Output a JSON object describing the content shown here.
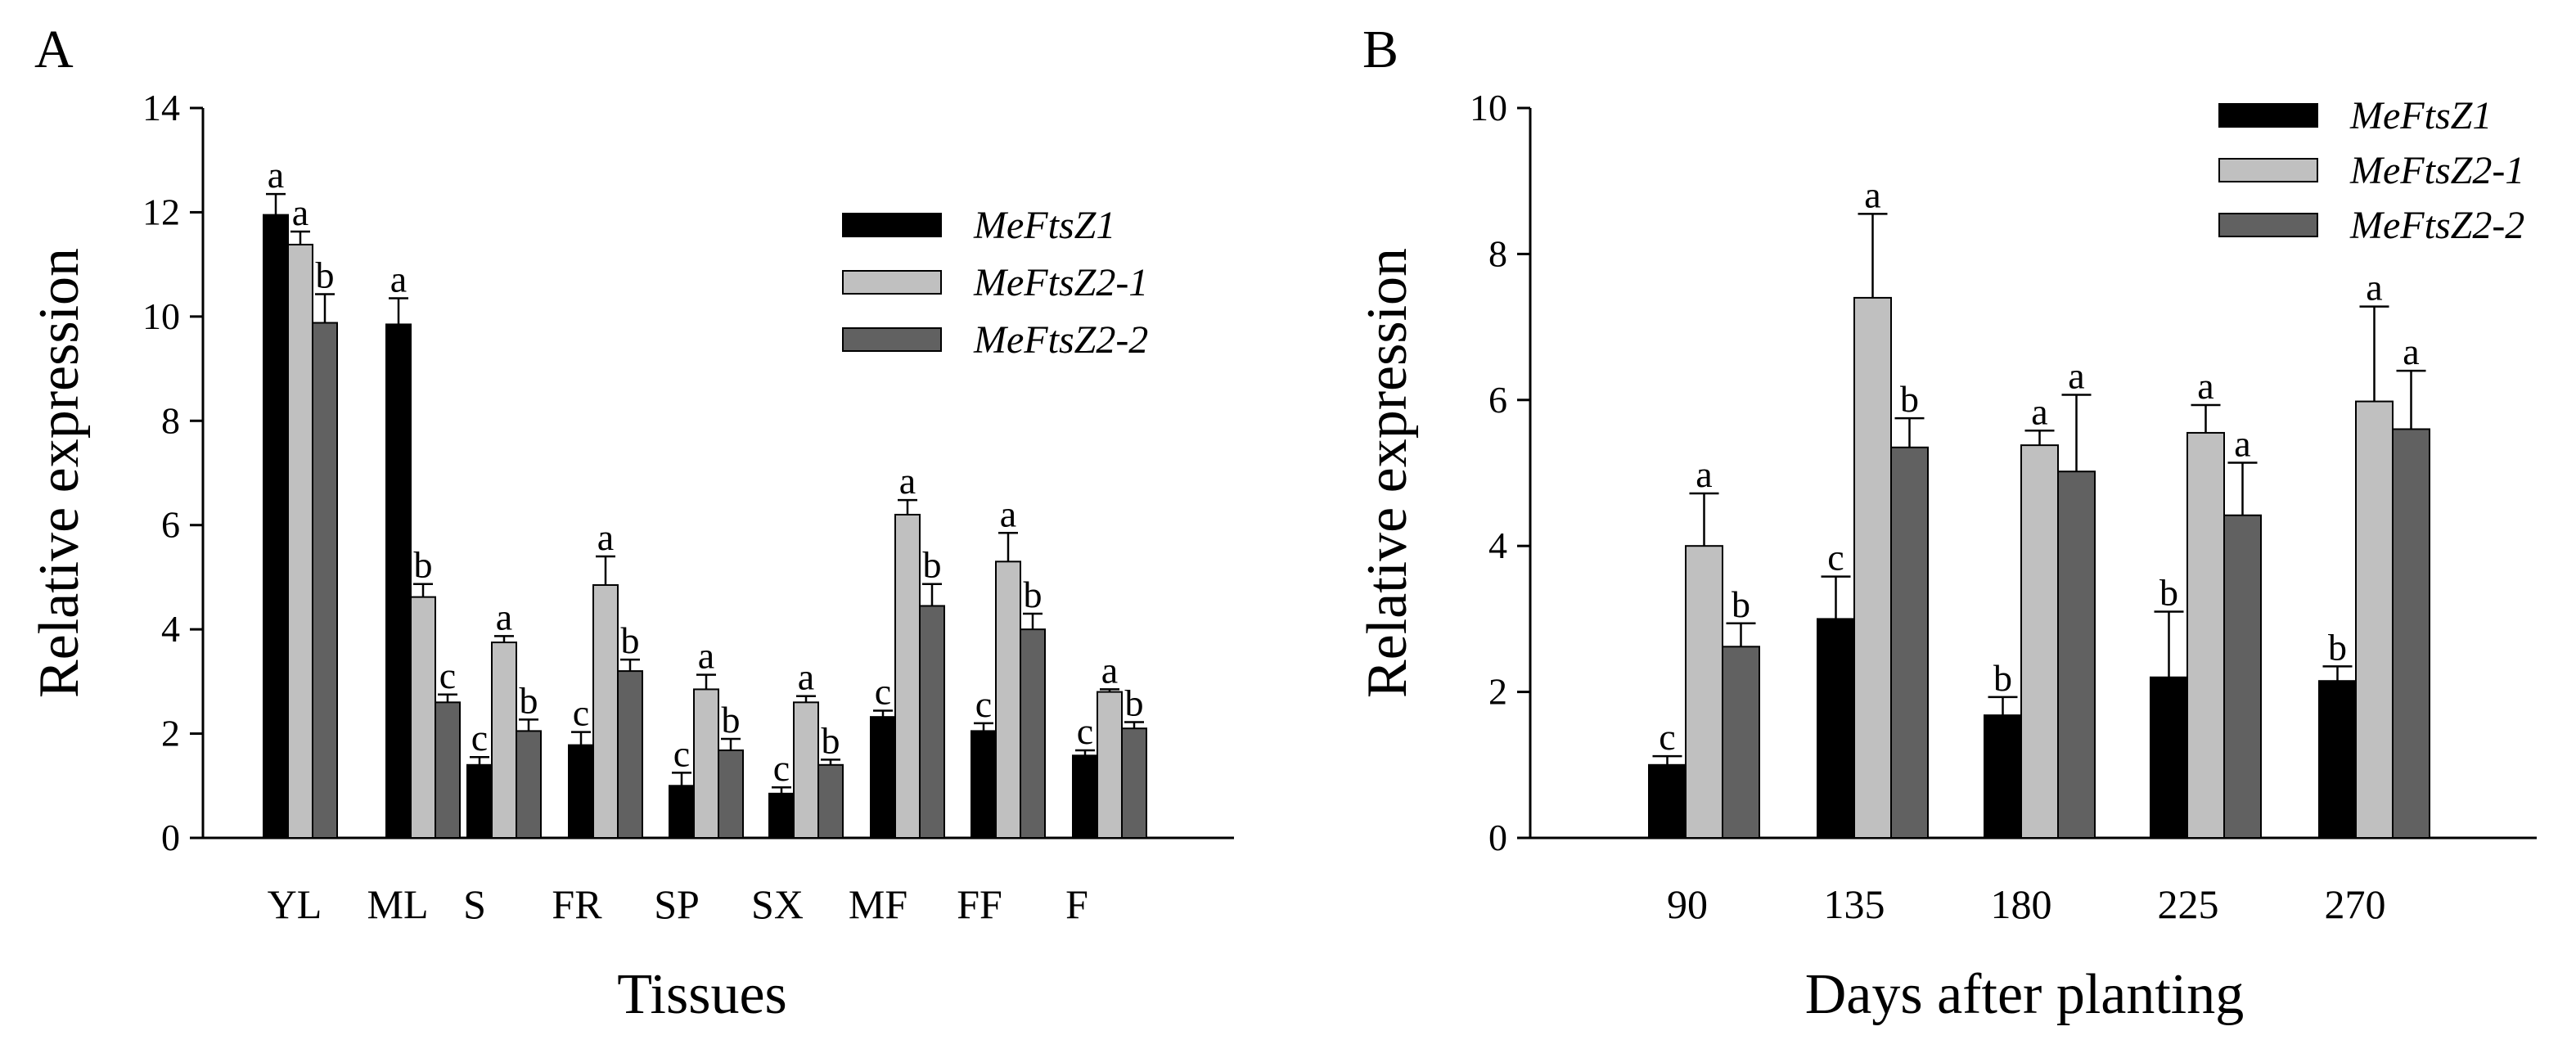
{
  "chart_data": [
    {
      "panel_label": "A",
      "type": "bar",
      "xlabel": "Tissues",
      "ylabel": "Relative expression",
      "ylim": [
        0,
        14
      ],
      "yticks": [
        "0",
        "2",
        "4",
        "6",
        "8",
        "10",
        "12",
        "14"
      ],
      "categories": [
        "YL",
        "ML",
        "S",
        "FR",
        "SP",
        "SX",
        "MF",
        "FF",
        "F"
      ],
      "legend_position": "top-right",
      "series": [
        {
          "name": "MeFtsZ1",
          "color": "#000000",
          "values": [
            11.95,
            9.85,
            1.4,
            1.78,
            1.0,
            0.85,
            2.32,
            2.05,
            1.58
          ],
          "errors": [
            0.4,
            0.5,
            0.15,
            0.25,
            0.25,
            0.12,
            0.12,
            0.15,
            0.1
          ],
          "letters": [
            "a",
            "a",
            "c",
            "c",
            "c",
            "c",
            "c",
            "c",
            "c"
          ]
        },
        {
          "name": "MeFtsZ2-1",
          "color": "#c0c0c0",
          "values": [
            11.38,
            4.62,
            3.75,
            4.85,
            2.85,
            2.6,
            6.2,
            5.3,
            2.8
          ],
          "errors": [
            0.25,
            0.25,
            0.12,
            0.55,
            0.28,
            0.12,
            0.28,
            0.55,
            0.05
          ],
          "letters": [
            "a",
            "b",
            "a",
            "a",
            "a",
            "a",
            "a",
            "a",
            "a"
          ]
        },
        {
          "name": "MeFtsZ2-2",
          "color": "#616161",
          "values": [
            9.88,
            2.6,
            2.05,
            3.2,
            1.68,
            1.4,
            4.45,
            4.0,
            2.1
          ],
          "errors": [
            0.55,
            0.15,
            0.22,
            0.22,
            0.22,
            0.1,
            0.42,
            0.3,
            0.12
          ],
          "letters": [
            "b",
            "c",
            "b",
            "b",
            "b",
            "b",
            "b",
            "b",
            "b"
          ]
        }
      ]
    },
    {
      "panel_label": "B",
      "type": "bar",
      "xlabel": "Days after planting",
      "ylabel": "Relative expression",
      "ylim": [
        0,
        10
      ],
      "yticks": [
        "0",
        "2",
        "4",
        "6",
        "8",
        "10"
      ],
      "categories": [
        "90",
        "135",
        "180",
        "225",
        "270"
      ],
      "legend_position": "top-right",
      "series": [
        {
          "name": "MeFtsZ1",
          "color": "#000000",
          "values": [
            1.0,
            3.0,
            1.68,
            2.2,
            2.15
          ],
          "errors": [
            0.12,
            0.58,
            0.25,
            0.9,
            0.2
          ],
          "letters": [
            "c",
            "c",
            "b",
            "b",
            "b"
          ]
        },
        {
          "name": "MeFtsZ2-1",
          "color": "#c0c0c0",
          "values": [
            4.0,
            7.4,
            5.38,
            5.55,
            5.98
          ],
          "errors": [
            0.72,
            1.15,
            0.2,
            0.38,
            1.3
          ],
          "letters": [
            "a",
            "a",
            "a",
            "a",
            "a"
          ]
        },
        {
          "name": "MeFtsZ2-2",
          "color": "#616161",
          "values": [
            2.62,
            5.35,
            5.02,
            4.42,
            5.6
          ],
          "errors": [
            0.32,
            0.4,
            1.05,
            0.72,
            0.8
          ],
          "letters": [
            "b",
            "b",
            "a",
            "a",
            "a"
          ]
        }
      ]
    }
  ]
}
